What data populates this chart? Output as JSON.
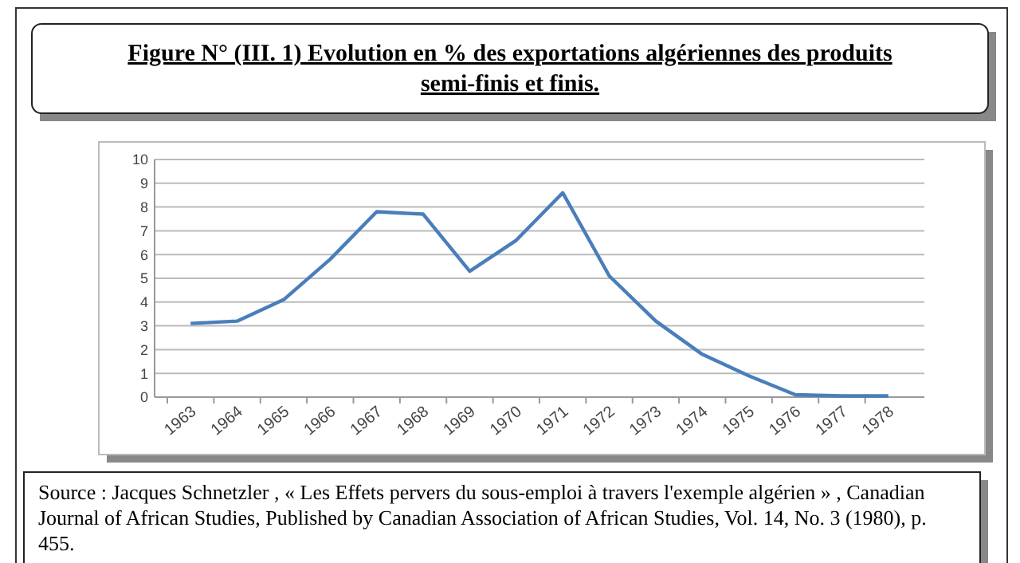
{
  "chart_data": {
    "type": "line",
    "title": "Figure N° (III. 1) Evolution en % des exportations algériennes des produits semi-finis et finis.",
    "categories": [
      "1963",
      "1964",
      "1965",
      "1966",
      "1967",
      "1968",
      "1969",
      "1970",
      "1971",
      "1972",
      "1973",
      "1974",
      "1975",
      "1976",
      "1977",
      "1978"
    ],
    "series": [
      {
        "color": "#4a7ebb",
        "values": [
          3.1,
          3.2,
          4.1,
          5.8,
          7.8,
          7.7,
          5.3,
          6.6,
          8.6,
          5.1,
          3.2,
          1.8,
          0.9,
          0.1,
          0.05,
          0.05
        ]
      }
    ],
    "ylim": [
      0,
      10
    ],
    "yticks": [
      0,
      1,
      2,
      3,
      4,
      5,
      6,
      7,
      8,
      9,
      10
    ],
    "grid": "y",
    "marker": "none",
    "line_style": "solid",
    "annotations": [
      "Source : Jacques Schnetzler , « Les Effets pervers du sous-emploi à travers l'exemple algérien » , Canadian Journal of African Studies, Published by Canadian Association of African Studies, Vol. 14, No. 3 (1980), p. 455."
    ]
  }
}
